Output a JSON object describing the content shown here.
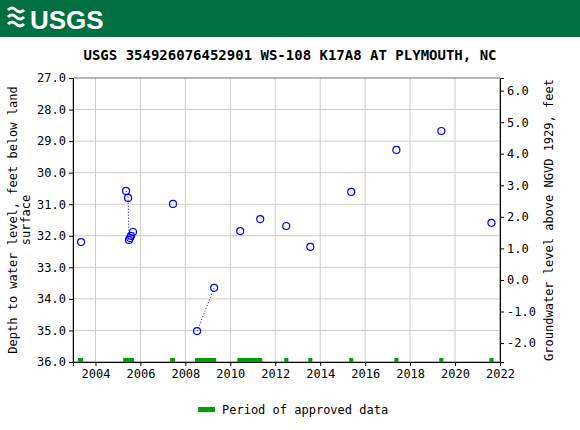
{
  "header": {
    "logo": "USGS"
  },
  "chart_data": {
    "type": "scatter",
    "title": "USGS 354926076452901 WS-108 K17A8 AT PLYMOUTH, NC",
    "y_label": [
      "Depth to water level, feet below land",
      "surface"
    ],
    "y2_label": "Groundwater level above NGVD 1929, feet",
    "x": [
      2003.36,
      null,
      2005.36,
      2005.45,
      2005.49,
      2005.54,
      2005.58,
      2005.67,
      null,
      2007.45,
      null,
      2008.52,
      2009.28,
      null,
      2010.44,
      null,
      2011.33,
      null,
      2012.49,
      null,
      2013.56,
      null,
      2015.38,
      null,
      2017.39,
      null,
      2019.39,
      null,
      2021.62
    ],
    "series": [
      {
        "color": "#0000ff",
        "marker": "circle",
        "line_style": "dotted",
        "values": [
          32.2,
          null,
          30.58,
          30.8,
          32.13,
          32.07,
          32.0,
          31.88,
          null,
          30.99,
          null,
          35.02,
          33.65,
          null,
          31.85,
          null,
          31.47,
          null,
          31.69,
          null,
          32.35,
          null,
          30.61,
          null,
          29.28,
          null,
          28.68,
          null,
          31.59
        ]
      }
    ],
    "approved_periods": {
      "name": "Period of approved data",
      "color": "#00a000",
      "starts": [
        2003.22,
        2005.23,
        2007.32,
        2008.43,
        2010.31,
        2012.4,
        2013.47,
        2015.29,
        2017.3,
        2019.3,
        2021.53
      ],
      "ends": [
        2003.45,
        2005.72,
        2007.54,
        2009.37,
        2011.42,
        2012.58,
        2013.65,
        2015.47,
        2017.48,
        2019.48,
        2021.71
      ]
    },
    "xlim": [
      2003,
      2022
    ],
    "xticks": [
      2004,
      2006,
      2008,
      2010,
      2012,
      2014,
      2016,
      2018,
      2020,
      2022
    ],
    "ylim": [
      27,
      36
    ],
    "yticks": [
      {
        "value": 27,
        "label": "27.0"
      },
      {
        "value": 28,
        "label": "28.0"
      },
      {
        "value": 29,
        "label": "29.0"
      },
      {
        "value": 30,
        "label": "30.0"
      },
      {
        "value": 31,
        "label": "31.0"
      },
      {
        "value": 32,
        "label": "32.0"
      },
      {
        "value": 33,
        "label": "33.0"
      },
      {
        "value": 34,
        "label": "34.0"
      },
      {
        "value": 35,
        "label": "35.0"
      },
      {
        "value": 36,
        "label": "36.0"
      }
    ],
    "y2lim": [
      6.4,
      -2.6
    ],
    "y2ticks": [
      {
        "value": 6,
        "label": "6.0"
      },
      {
        "value": 5,
        "label": "5.0"
      },
      {
        "value": 4,
        "label": "4.0"
      },
      {
        "value": 3,
        "label": "3.0"
      },
      {
        "value": 2,
        "label": "2.0"
      },
      {
        "value": 1,
        "label": "1.0"
      },
      {
        "value": 0,
        "label": "0.0"
      },
      {
        "value": -1,
        "label": "-1.0"
      },
      {
        "value": -2,
        "label": "-2.0"
      }
    ],
    "grid": true
  }
}
